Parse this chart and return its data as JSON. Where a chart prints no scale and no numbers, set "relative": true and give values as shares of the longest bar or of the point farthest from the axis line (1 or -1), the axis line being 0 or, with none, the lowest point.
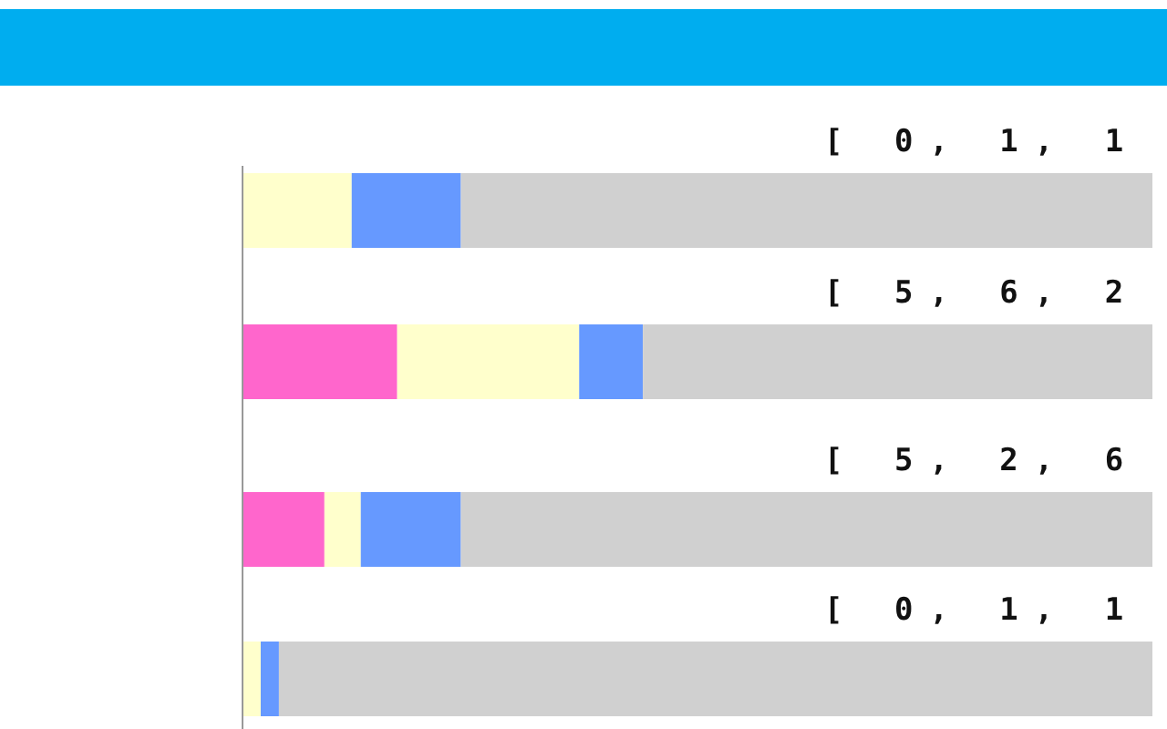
{
  "chart_data": {
    "type": "bar",
    "orientation": "horizontal",
    "stacked": true,
    "relative": true,
    "categories": [
      null,
      null,
      null,
      null
    ],
    "series": [
      {
        "color": "#ff66cc",
        "values": [
          0,
          0.17,
          0.09,
          0
        ]
      },
      {
        "color": "#ffffcc",
        "values": [
          0.12,
          0.2,
          0.04,
          0.02
        ]
      },
      {
        "color": "#6699ff",
        "values": [
          0.12,
          0.07,
          0.11,
          0.02
        ]
      },
      {
        "color": "#d0d0d0",
        "values": [
          0.76,
          0.56,
          0.76,
          0.96
        ]
      }
    ],
    "annotations": [
      "[ 0, 1, 1",
      "[ 5, 6, 2",
      "[ 5, 2, 6",
      "[ 0, 1, 1"
    ]
  }
}
